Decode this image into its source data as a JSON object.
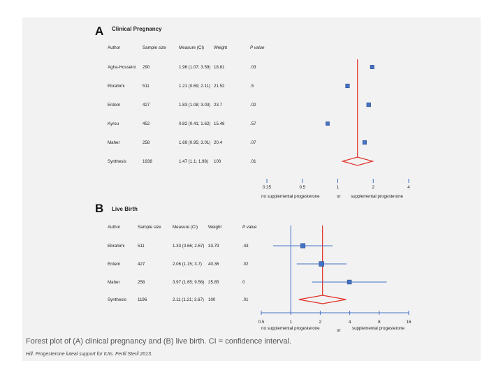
{
  "caption": "Forest plot of (A) clinical pregnancy and (B) live birth. CI = confidence interval.",
  "citation": "Hill. Progesterone luteal support for IUIs. Fertil Steril 2013.",
  "colors": {
    "point": "#4472c4",
    "reference_line": "#4472c4",
    "synthesis_line": "#e0312a",
    "diamond": "#e0312a",
    "ci_line": "#4472c4"
  },
  "chart_data": [
    {
      "type": "forest",
      "panel_letter": "A",
      "title": "Clinical Pregnancy",
      "headers": {
        "author": "Author",
        "sample": "Sample size",
        "measure": "Measure (CI)",
        "weight": "Weight",
        "p": "P value"
      },
      "rows": [
        {
          "author": "Agha-Hosseini",
          "sample": "290",
          "measure": "1.96 (1.07; 3.59)",
          "weight": "18.81",
          "p": ".03",
          "or": 1.96,
          "lo": 1.07,
          "hi": 3.59
        },
        {
          "author": "Ebrahimi",
          "sample": "511",
          "measure": "1.21 (0.69; 2.11)",
          "weight": "21.52",
          "p": ".5",
          "or": 1.21,
          "lo": 0.69,
          "hi": 2.11
        },
        {
          "author": "Erdem",
          "sample": "427",
          "measure": "1.83 (1.08; 3.03)",
          "weight": "23.7",
          "p": ".02",
          "or": 1.83,
          "lo": 1.08,
          "hi": 3.03
        },
        {
          "author": "Kyrou",
          "sample": "452",
          "measure": "0.82 (0.41; 1.62)",
          "weight": "15.48",
          "p": ".57",
          "or": 0.82,
          "lo": 0.41,
          "hi": 1.62
        },
        {
          "author": "Maher",
          "sample": "258",
          "measure": "1.69 (0.95; 3.01)",
          "weight": "20.4",
          "p": ".07",
          "or": 1.69,
          "lo": 0.95,
          "hi": 3.01
        }
      ],
      "synthesis": {
        "author": "Synthesis",
        "sample": "1938",
        "measure": "1.47 (1.1; 1.98)",
        "weight": "100",
        "p": ".01",
        "or": 1.47,
        "lo": 1.1,
        "hi": 1.98
      },
      "x_scale": "log",
      "x_ticks": [
        {
          "value": 0.25,
          "label": "0.25"
        },
        {
          "value": 0.5,
          "label": "0.5"
        },
        {
          "value": 1,
          "label": "1"
        },
        {
          "value": 2,
          "label": "2"
        },
        {
          "value": 4,
          "label": "4"
        }
      ],
      "xlim": [
        0.25,
        4
      ],
      "show_whiskers": false,
      "show_axis_line": false,
      "show_null_line": false,
      "x_label_left": "no supplemental progesterone",
      "x_label_mid": "or",
      "x_label_right": "supplemental progesterone"
    },
    {
      "type": "forest",
      "panel_letter": "B",
      "title": "Live Birth",
      "headers": {
        "author": "Author",
        "sample": "Sample size",
        "measure": "Measure (CI)",
        "weight": "Weight",
        "p": "P value"
      },
      "rows": [
        {
          "author": "Ebrahimi",
          "sample": "511",
          "measure": "1.33 (0.66; 2.67)",
          "weight": "33.79",
          "p": ".43",
          "or": 1.33,
          "lo": 0.66,
          "hi": 2.67
        },
        {
          "author": "Erdem",
          "sample": "427",
          "measure": "2.06 (1.15; 3.7)",
          "weight": "40.36",
          "p": ".02",
          "or": 2.06,
          "lo": 1.15,
          "hi": 3.7
        },
        {
          "author": "Maher",
          "sample": "258",
          "measure": "3.97 (1.65; 9.56)",
          "weight": "25.85",
          "p": "0",
          "or": 3.97,
          "lo": 1.65,
          "hi": 9.56
        }
      ],
      "synthesis": {
        "author": "Synthesis",
        "sample": "1196",
        "measure": "2.11 (1.21; 3.67)",
        "weight": "100",
        "p": ".01",
        "or": 2.11,
        "lo": 1.21,
        "hi": 3.67
      },
      "x_scale": "log",
      "x_ticks": [
        {
          "value": 0.5,
          "label": "0.5"
        },
        {
          "value": 1,
          "label": "1"
        },
        {
          "value": 2,
          "label": "2"
        },
        {
          "value": 4,
          "label": "4"
        },
        {
          "value": 8,
          "label": "8"
        },
        {
          "value": 16,
          "label": "16"
        }
      ],
      "xlim": [
        0.5,
        16
      ],
      "show_whiskers": true,
      "show_axis_line": true,
      "show_null_line": true,
      "x_label_left": "no supplemental progesterone",
      "x_label_mid": "or",
      "x_label_right": "supplemental progesterone"
    }
  ]
}
